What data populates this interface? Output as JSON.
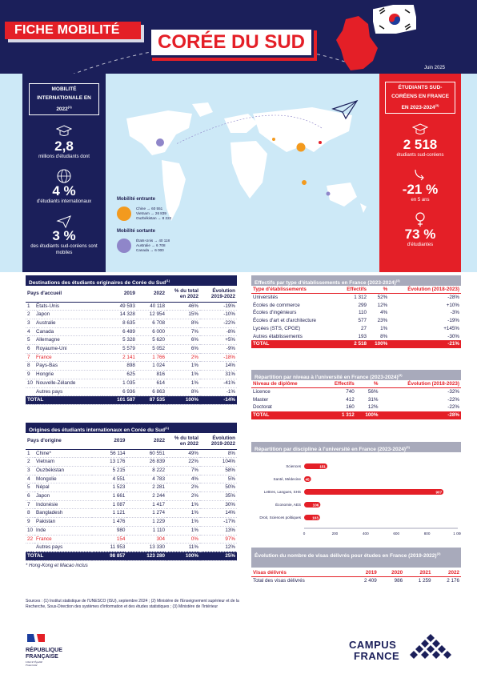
{
  "header": {
    "fiche": "FICHE MOBILITÉ",
    "country": "CORÉE DU SUD",
    "date": "Juin 2025"
  },
  "left_panel": {
    "title": "MOBILITÉ INTERNATIONALE EN 2022",
    "title_note": "(1)",
    "stat1_value": "2,8",
    "stat1_label": "millions d'étudiants dont",
    "stat2_value": "4 %",
    "stat2_label": "d'étudiants internationaux",
    "stat3_value": "3 %",
    "stat3_label": "des étudiants sud-coréens sont mobiles"
  },
  "right_panel": {
    "title": "ÉTUDIANTS SUD-CORÉENS EN FRANCE EN 2023-2024",
    "title_note": "(3)",
    "stat1_value": "2 518",
    "stat1_label": "étudiants sud-coréens",
    "stat2_value": "-21 %",
    "stat2_label": "en 5 ans",
    "stat3_value": "73 %",
    "stat3_label": "d'étudiantes"
  },
  "legend": {
    "incoming_title": "Mobilité entrante",
    "incoming": [
      "Chine → 60 551",
      "Vietnam → 26 839",
      "Ouzbékistan → 8 222"
    ],
    "outgoing_title": "Mobilité sortante",
    "outgoing": [
      "États-Unis → 40 118",
      "Australie → 6 708",
      "Canada → 6 000"
    ],
    "incoming_color": "#f39a1e",
    "outgoing_color": "#8f86c9"
  },
  "destinations": {
    "title": "Destinations des étudiants originaires de Corée du Sud",
    "title_note": "(1)",
    "headers": [
      "Pays d'accueil",
      "2019",
      "2022",
      "% du total en 2022",
      "Évolution 2019-2022"
    ],
    "rows": [
      [
        "1",
        "États-Unis",
        "49 593",
        "40 118",
        "46%",
        "-19%"
      ],
      [
        "2",
        "Japon",
        "14 328",
        "12 954",
        "15%",
        "-10%"
      ],
      [
        "3",
        "Australie",
        "8 635",
        "6 708",
        "8%",
        "-22%"
      ],
      [
        "4",
        "Canada",
        "6 489",
        "6 000",
        "7%",
        "-8%"
      ],
      [
        "5",
        "Allemagne",
        "5 328",
        "5 620",
        "6%",
        "+5%"
      ],
      [
        "6",
        "Royaume-Uni",
        "5 579",
        "5 052",
        "6%",
        "-9%"
      ],
      [
        "7",
        "France",
        "2 141",
        "1 766",
        "2%",
        "-18%"
      ],
      [
        "8",
        "Pays-Bas",
        "898",
        "1 024",
        "1%",
        "14%"
      ],
      [
        "9",
        "Hongrie",
        "625",
        "816",
        "1%",
        "31%"
      ],
      [
        "10",
        "Nouvelle-Zélande",
        "1 035",
        "614",
        "1%",
        "-41%"
      ],
      [
        "",
        "Autres pays",
        "6 936",
        "6 863",
        "8%",
        "-1%"
      ]
    ],
    "total": [
      "TOTAL",
      "101 587",
      "87 535",
      "100%",
      "-14%"
    ]
  },
  "origins": {
    "title": "Origines des étudiants internationaux en Corée du Sud",
    "title_note": "(1)",
    "headers": [
      "Pays d'origine",
      "2019",
      "2022",
      "% du total en 2022",
      "Évolution 2019-2022"
    ],
    "rows": [
      [
        "1",
        "Chine*",
        "56 114",
        "60 551",
        "49%",
        "8%"
      ],
      [
        "2",
        "Vietnam",
        "13 176",
        "26 839",
        "22%",
        "104%"
      ],
      [
        "3",
        "Ouzbékistan",
        "5 215",
        "8 222",
        "7%",
        "58%"
      ],
      [
        "4",
        "Mongolie",
        "4 551",
        "4 783",
        "4%",
        "5%"
      ],
      [
        "5",
        "Népal",
        "1 523",
        "2 281",
        "2%",
        "50%"
      ],
      [
        "6",
        "Japon",
        "1 661",
        "2 244",
        "2%",
        "35%"
      ],
      [
        "7",
        "Indonésie",
        "1 087",
        "1 417",
        "1%",
        "30%"
      ],
      [
        "8",
        "Bangladesh",
        "1 121",
        "1 274",
        "1%",
        "14%"
      ],
      [
        "9",
        "Pakistan",
        "1 476",
        "1 229",
        "1%",
        "-17%"
      ],
      [
        "10",
        "Inde",
        "980",
        "1 110",
        "1%",
        "13%"
      ],
      [
        "22",
        "France",
        "154",
        "304",
        "0%",
        "97%"
      ],
      [
        "",
        "Autres pays",
        "11 953",
        "13 330",
        "11%",
        "12%"
      ]
    ],
    "total": [
      "TOTAL",
      "98 857",
      "123 280",
      "100%",
      "25%"
    ],
    "note": "* Hong-Kong et Macao inclus"
  },
  "etab": {
    "title": "Effectifs par type d'établissements en France (2023-2024)",
    "title_note": "(3)",
    "headers": [
      "Type d'établissements",
      "Effectifs",
      "%",
      "Évolution (2018-2023)"
    ],
    "rows": [
      [
        "Universités",
        "1 312",
        "52%",
        "-28%"
      ],
      [
        "Écoles de commerce",
        "299",
        "12%",
        "+10%"
      ],
      [
        "Écoles d'ingénieurs",
        "110",
        "4%",
        "-3%"
      ],
      [
        "Écoles d'art et d'architecture",
        "577",
        "23%",
        "-19%"
      ],
      [
        "Lycées (STS, CPGE)",
        "27",
        "1%",
        "+145%"
      ],
      [
        "Autres établissements",
        "193",
        "8%",
        "-30%"
      ]
    ],
    "total": [
      "TOTAL",
      "2 518",
      "100%",
      "-21%"
    ]
  },
  "niveau": {
    "title": "Répartition par niveau à l'université en France (2023-2024)",
    "title_note": "(3)",
    "headers": [
      "Niveau de diplôme",
      "Effectifs",
      "%",
      "Évolution (2018-2023)"
    ],
    "rows": [
      [
        "Licence",
        "740",
        "56%",
        "-32%"
      ],
      [
        "Master",
        "412",
        "31%",
        "-22%"
      ],
      [
        "Doctorat",
        "160",
        "12%",
        "-22%"
      ]
    ],
    "total": [
      "TOTAL",
      "1 312",
      "100%",
      "-28%"
    ]
  },
  "discipline": {
    "title": "Répartition par discipline à l'université en France (2023-2024)",
    "title_note": "(3)"
  },
  "chart_data": {
    "type": "bar",
    "orientation": "horizontal",
    "categories": [
      "Sciences",
      "Santé, Médecine",
      "Lettres, Langues, SHS",
      "Économie, AES",
      "Droit, Sciences politiques"
    ],
    "values": [
      151,
      45,
      907,
      106,
      103
    ],
    "xlim": [
      0,
      1000
    ],
    "xticks": [
      "0",
      "200",
      "400",
      "600",
      "800",
      "1 000"
    ],
    "color": "#e41f27"
  },
  "visas": {
    "title": "Évolution du nombre de visas délivrés pour études en France (2019-2022)",
    "title_note": "(2)",
    "headers": [
      "Visas délivrés",
      "2019",
      "2020",
      "2021",
      "2022"
    ],
    "row": [
      "Total des visas délivrés",
      "2 409",
      "986",
      "1 259",
      "2 176"
    ]
  },
  "sources": "Sources : (1) Institut statistique de l'UNESCO (ISU), septembre 2024 ; (2) Ministère de l'Enseignement supérieur et de la Recherche, Sous-Direction des systèmes d'information et des études statistiques ; (3) Ministère de l'Intérieur",
  "logos": {
    "rf_line1": "RÉPUBLIQUE",
    "rf_line2": "FRANÇAISE",
    "rf_motto": "Liberté Égalité Fraternité",
    "cf_line1": "CAMPUS",
    "cf_line2": "FRANCE"
  }
}
